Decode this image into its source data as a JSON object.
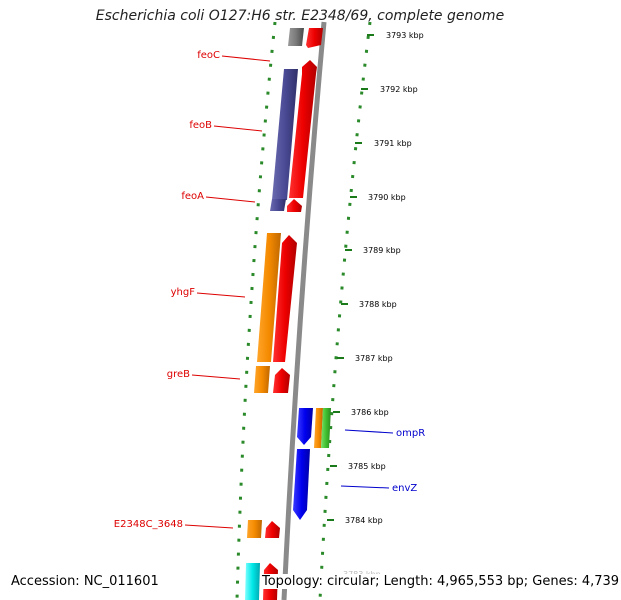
{
  "title": "Escherichia coli O127:H6 str. E2348/69, complete genome",
  "footer": {
    "accession": "Accession: NC_011601",
    "topology": "Topology: circular; Length: 4,965,553 bp; Genes: 4,739"
  },
  "colors": {
    "reverse_label": "#dd0000",
    "forward_label": "#0000cc",
    "backbone": "#8a8a8a",
    "dotted_ring": "#2a8a2a",
    "tick": "#1a7a1a"
  },
  "scale_ticks": [
    "3793 kbp",
    "3792 kbp",
    "3791 kbp",
    "3790 kbp",
    "3789 kbp",
    "3788 kbp",
    "3787 kbp",
    "3786 kbp",
    "3785 kbp",
    "3784 kbp",
    "3783 kbp"
  ],
  "gene_labels": [
    {
      "name": "feoC",
      "strand": "reverse"
    },
    {
      "name": "feoB",
      "strand": "reverse"
    },
    {
      "name": "feoA",
      "strand": "reverse"
    },
    {
      "name": "yhgF",
      "strand": "reverse"
    },
    {
      "name": "greB",
      "strand": "reverse"
    },
    {
      "name": "E2348C_3648",
      "strand": "reverse"
    },
    {
      "name": "ompR",
      "strand": "forward"
    },
    {
      "name": "envZ",
      "strand": "forward"
    }
  ]
}
